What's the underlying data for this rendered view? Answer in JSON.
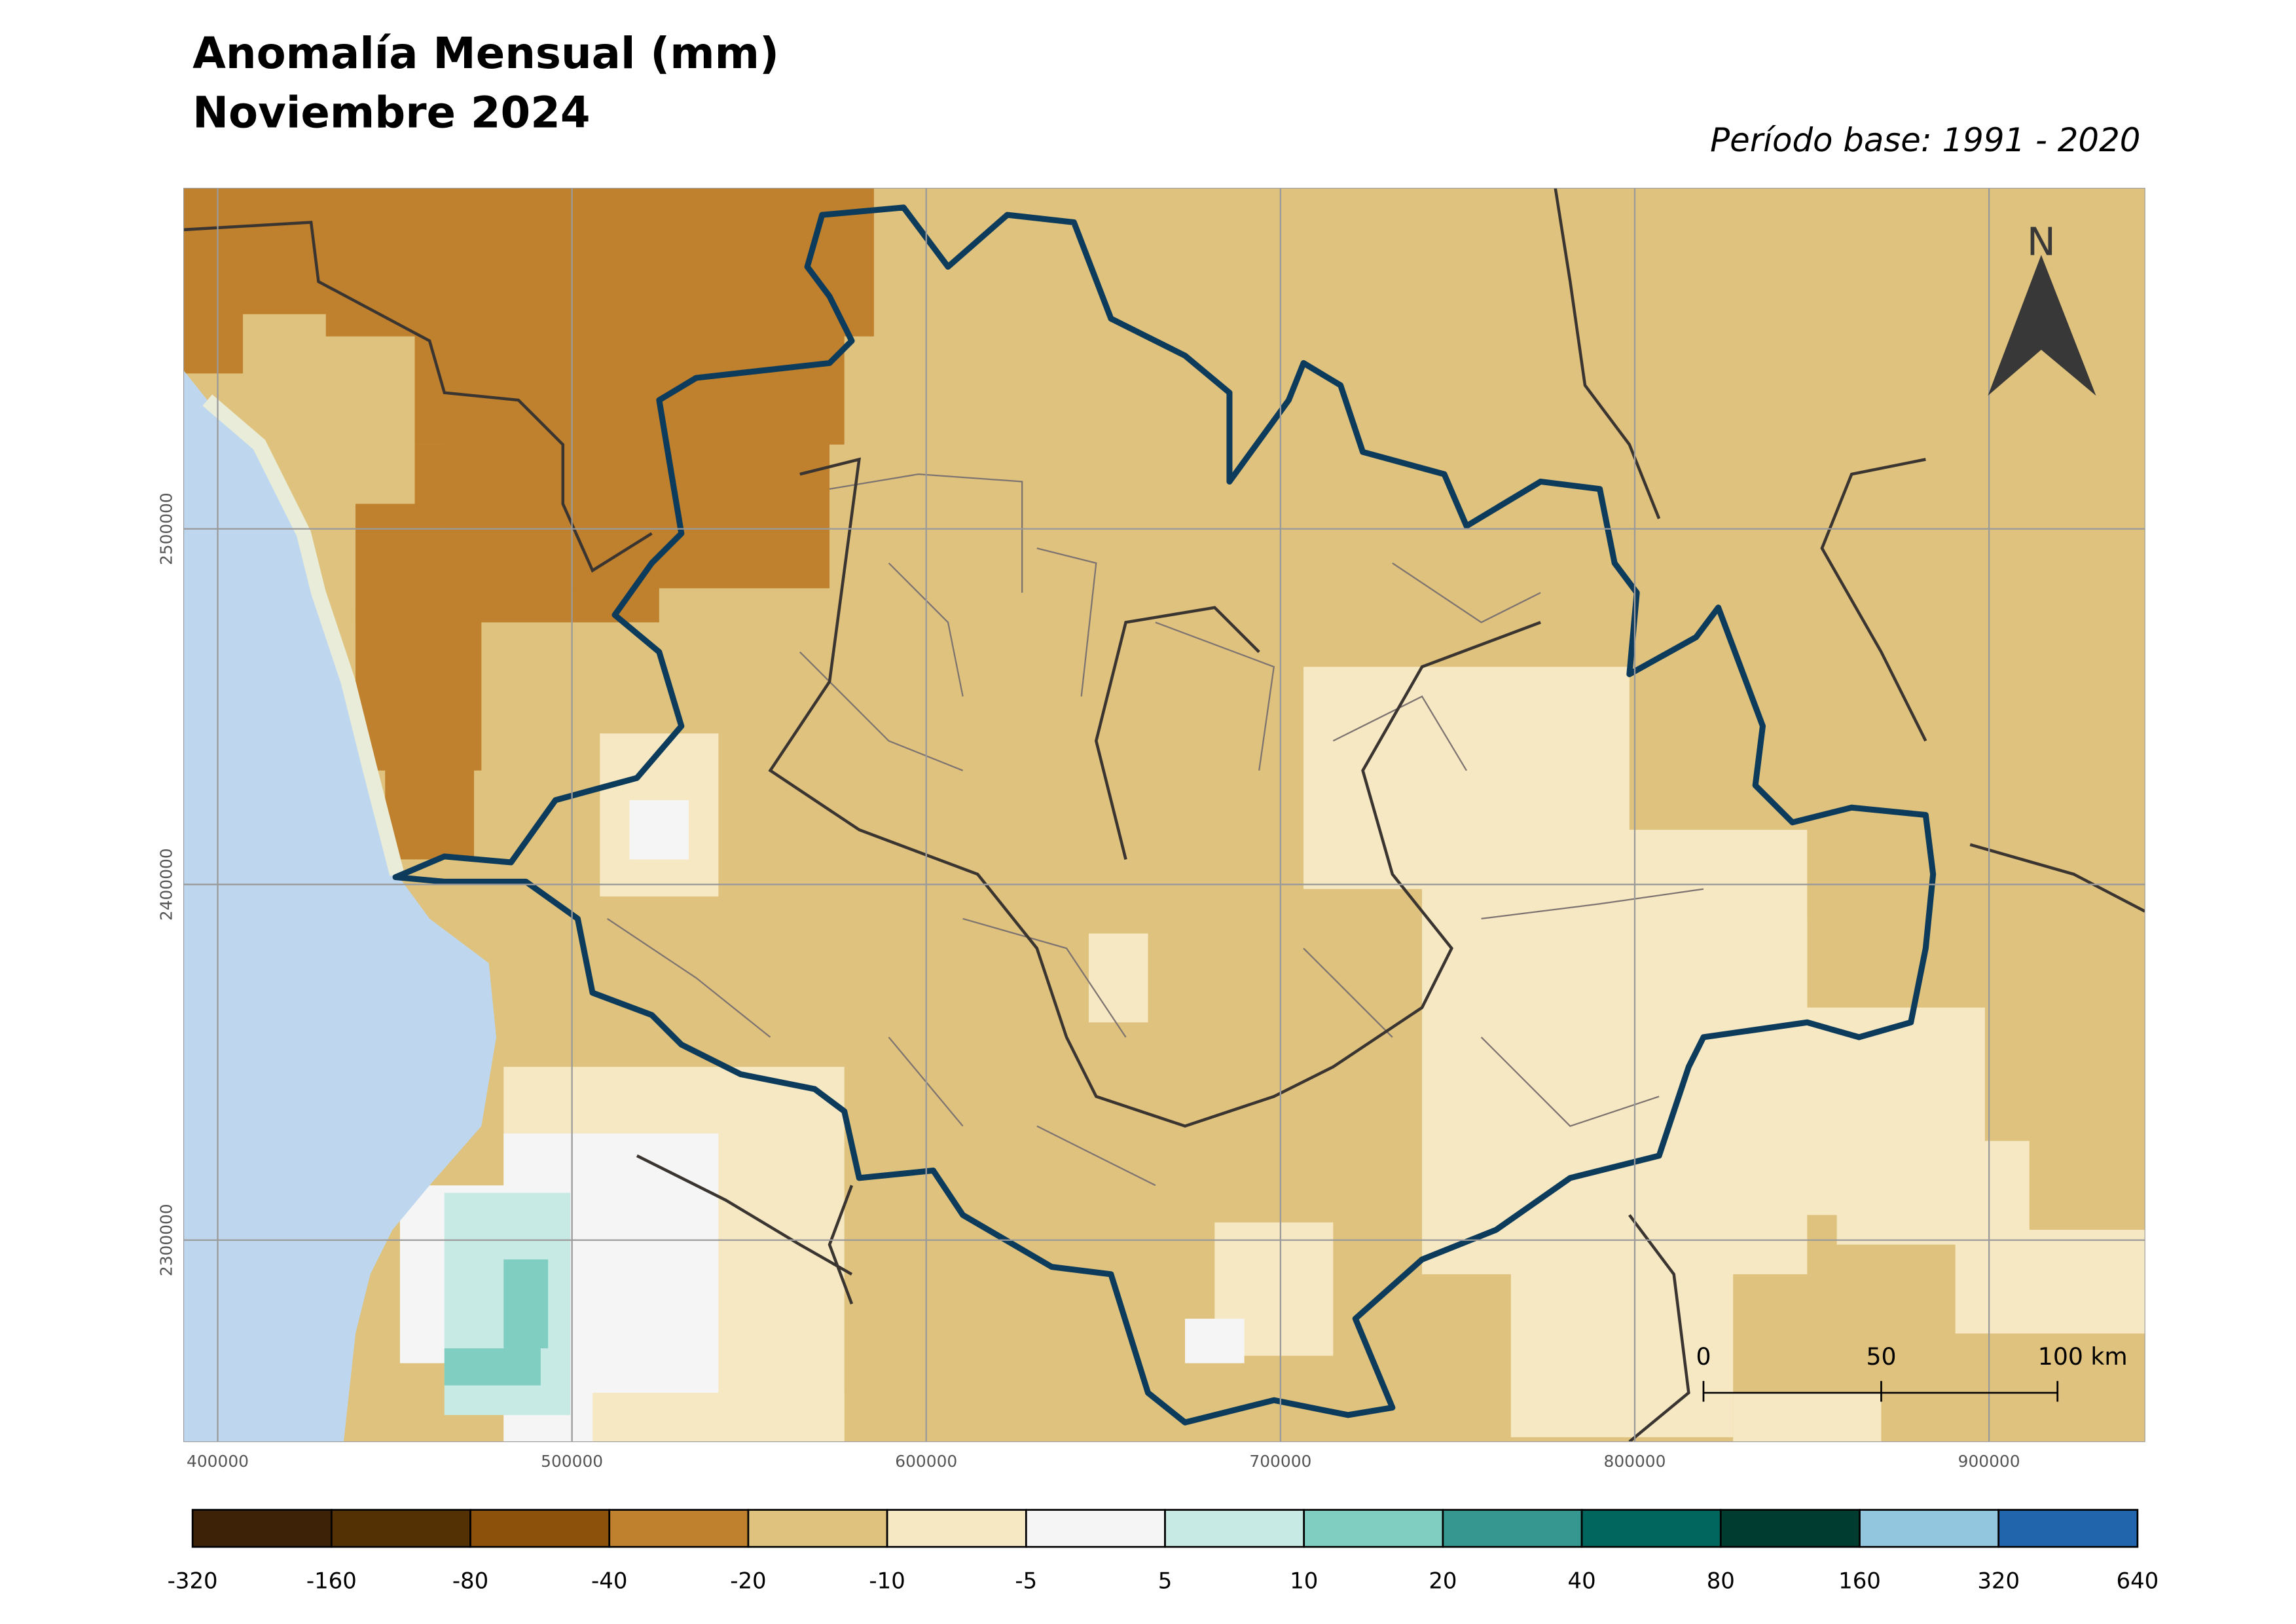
{
  "map": {
    "title": [
      "Anomalía Mensual (mm)",
      "Noviembre 2024"
    ],
    "base_period": "Período base: 1991 - 2020",
    "north": "N",
    "xlim": [
      390400,
      944000
    ],
    "ylim": [
      2243300,
      2595800
    ],
    "xticks": [
      400000,
      500000,
      600000,
      700000,
      800000,
      900000
    ],
    "yticks": [
      2300000,
      2400000,
      2500000
    ],
    "grid": true,
    "scale_bar": [
      "0",
      "50",
      "100 km"
    ],
    "legend": {
      "colors": [
        "#3d2207",
        "#543005",
        "#8c510a",
        "#bf812d",
        "#dfc27d",
        "#f6e8c3",
        "#f5f5f5",
        "#c7eae5",
        "#80cdc1",
        "#35978f",
        "#01665e",
        "#003c30",
        "#92c5de",
        "#2166ac"
      ],
      "breaks": [
        -320,
        -160,
        -80,
        -40,
        -20,
        -10,
        -5,
        5,
        10,
        20,
        40,
        80,
        160,
        320,
        640
      ]
    }
  }
}
